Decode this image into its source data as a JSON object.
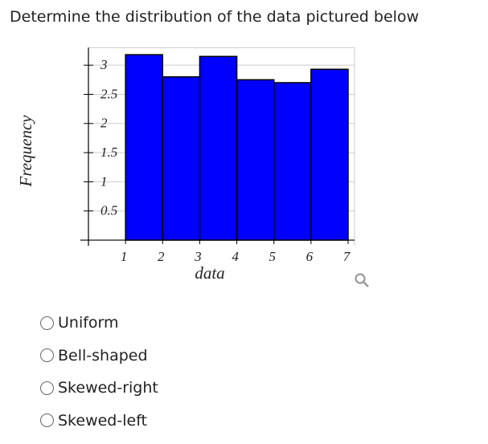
{
  "question": "Determine the distribution of the data pictured below",
  "options": [
    "Uniform",
    "Bell-shaped",
    "Skewed-right",
    "Skewed-left"
  ],
  "chart_data": {
    "type": "histogram",
    "x_label": "data",
    "y_label": "Frequency",
    "bins": [
      1,
      2,
      3,
      4,
      5,
      6,
      7
    ],
    "values": [
      3.18,
      2.8,
      3.15,
      2.75,
      2.7,
      2.93
    ],
    "color": "#0000ff",
    "xlim": [
      0,
      7
    ],
    "ylim": [
      -0.1,
      3.3
    ],
    "xticks": [
      1,
      2,
      3,
      4,
      5,
      6,
      7
    ],
    "yticks": [
      0.5,
      1,
      1.5,
      2,
      2.5,
      3
    ],
    "grid": true
  }
}
